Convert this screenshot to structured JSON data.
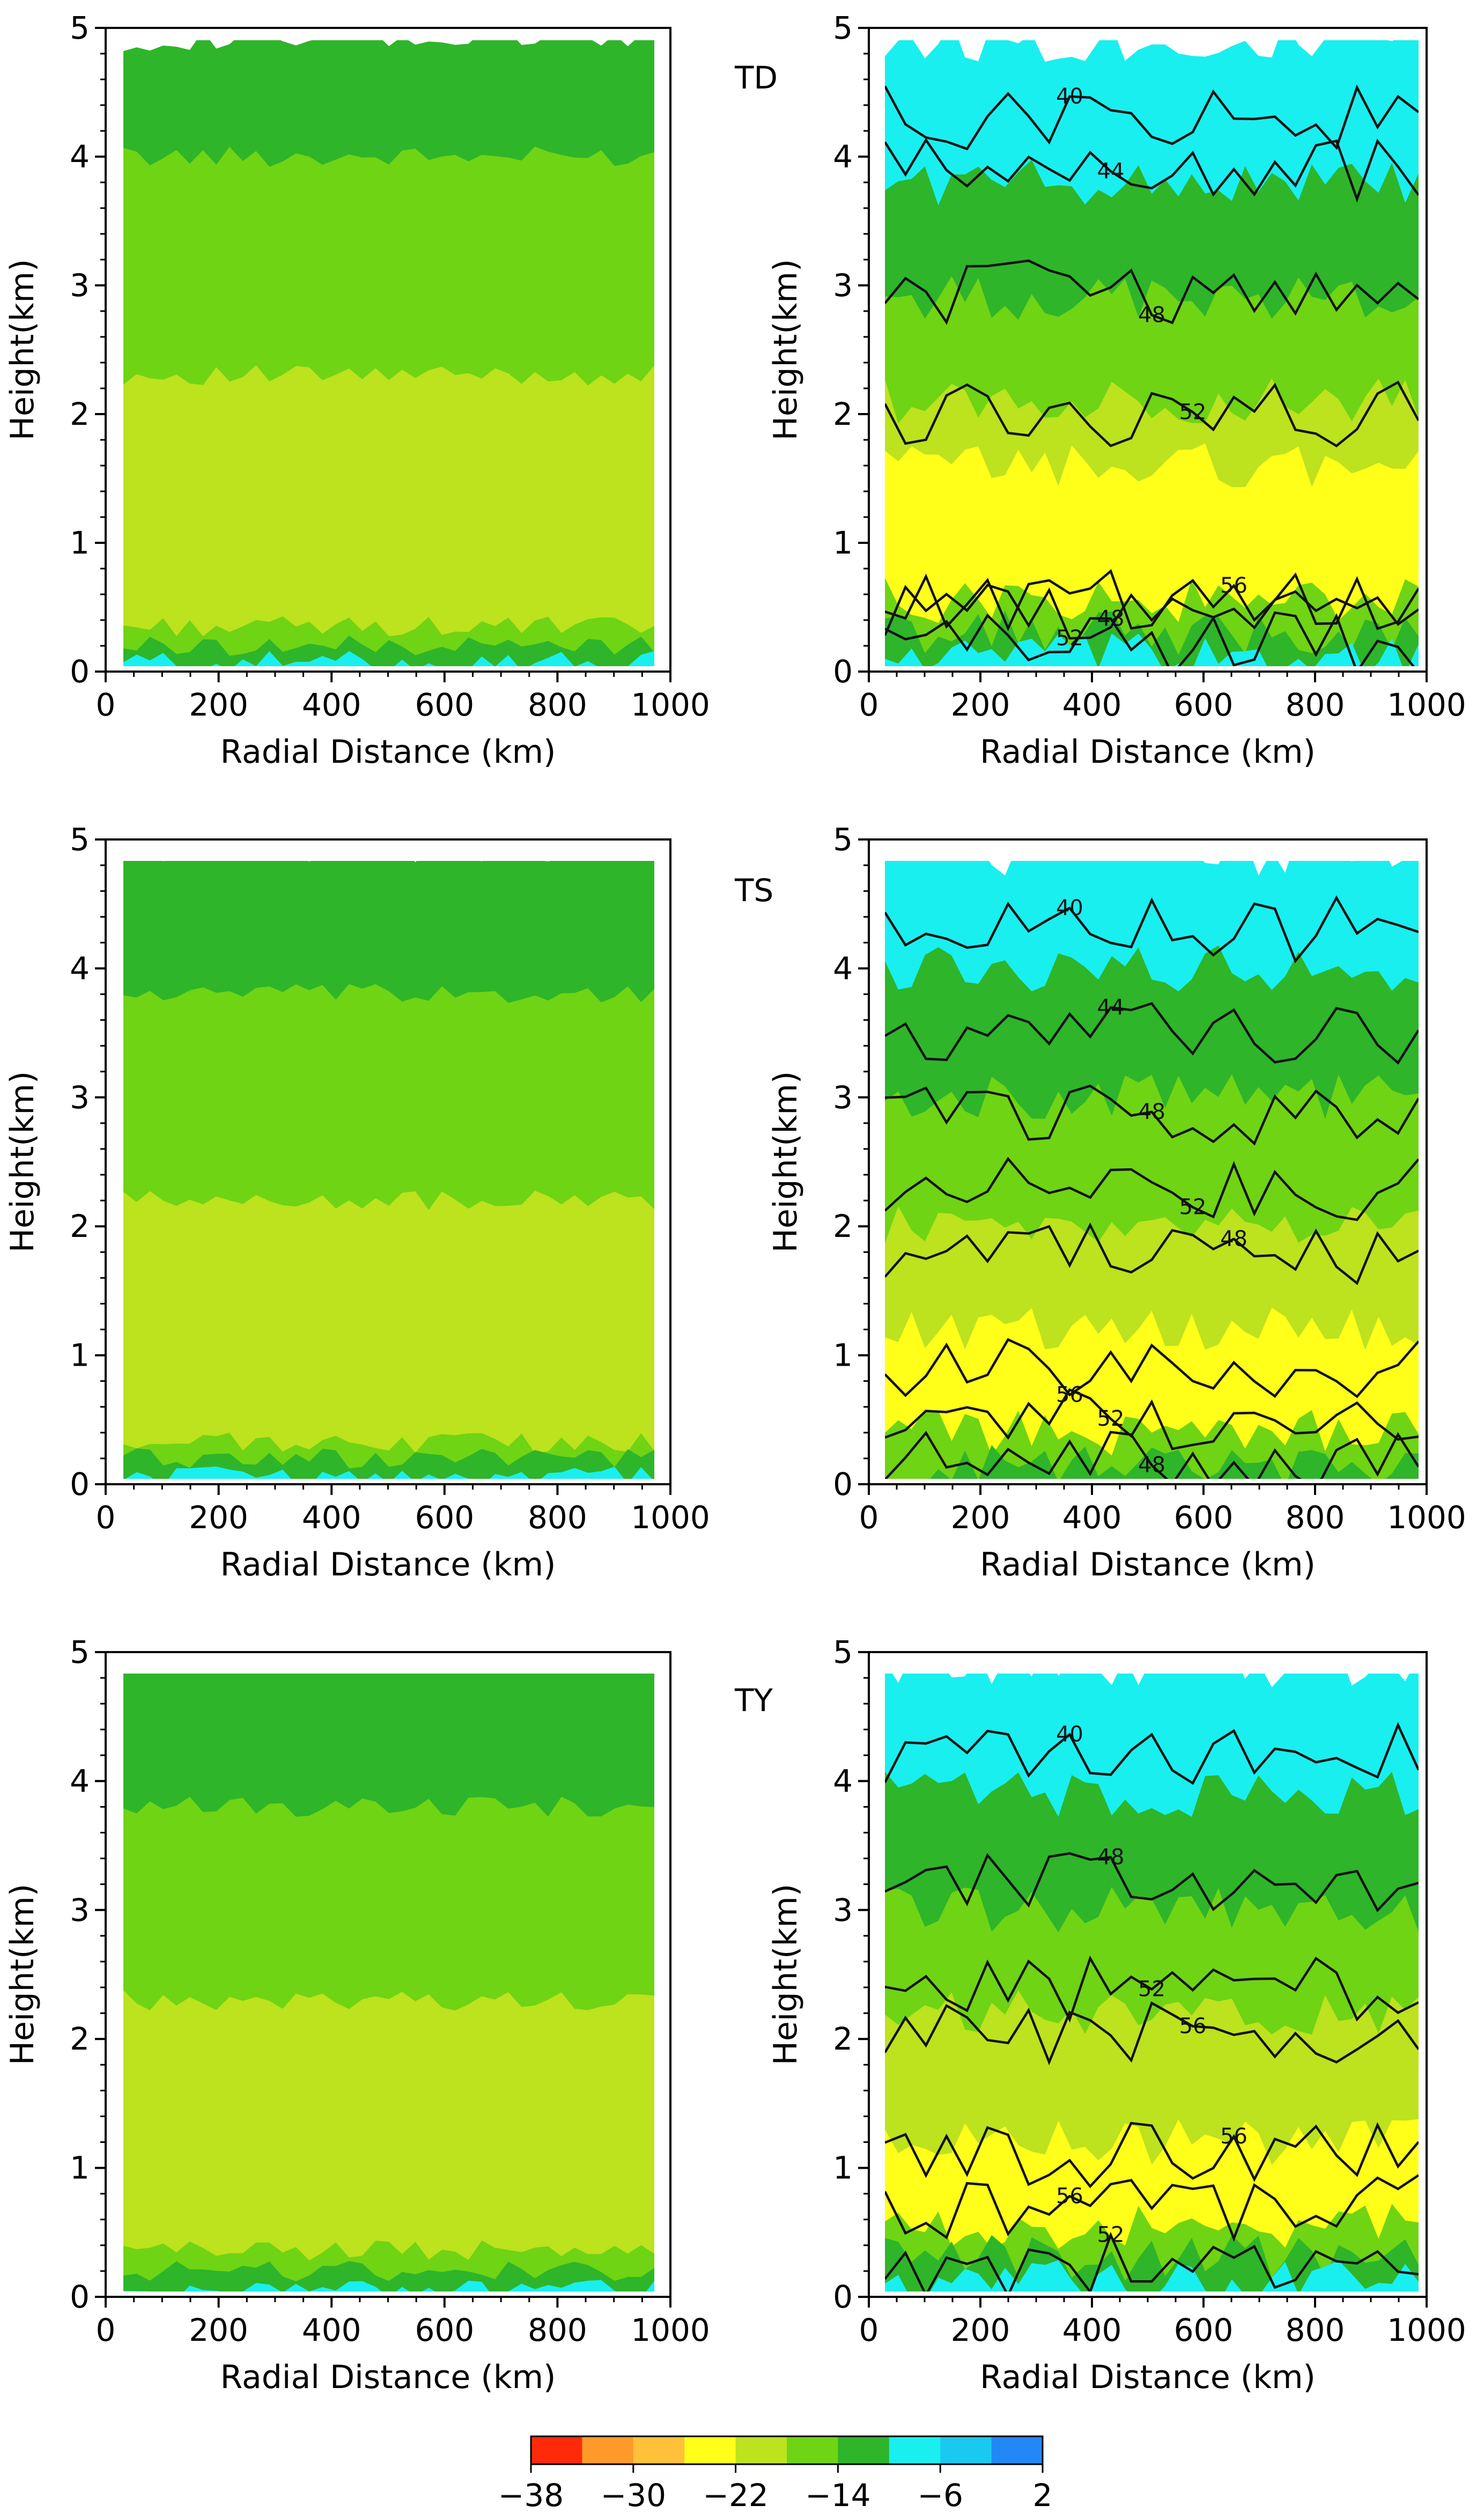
{
  "figure": {
    "type": "contour-panels",
    "layout": "3 rows x 2 columns",
    "row_tags": [
      "TD",
      "TS",
      "TY"
    ]
  },
  "chart_data": {
    "type": "heatmap",
    "x_axis": {
      "label": "Radial Distance (km)",
      "range": [
        0,
        1000
      ],
      "ticks": [
        "0",
        "200",
        "400",
        "600",
        "800",
        "1000"
      ]
    },
    "y_axis": {
      "label": "Height(km)",
      "range": [
        0,
        5
      ],
      "ticks": [
        "0",
        "1",
        "2",
        "3",
        "4",
        "5"
      ]
    },
    "colorbar": {
      "levels": [
        -38,
        -34,
        -30,
        -26,
        -22,
        -18,
        -14,
        -10,
        -6,
        -2,
        2
      ],
      "tick_labels": [
        "−38",
        "−30",
        "−22",
        "−14",
        "−6",
        "2"
      ],
      "tick_values": [
        -38,
        -30,
        -22,
        -14,
        -6,
        2
      ],
      "colors": [
        "#ff2a0a",
        "#ff9a2a",
        "#ffc13a",
        "#ffff1a",
        "#bde21e",
        "#6fd414",
        "#2eb52a",
        "#19efef",
        "#19c9f0",
        "#2288f5"
      ]
    },
    "panels": [
      {
        "row": 0,
        "col": 0,
        "tag": "",
        "filled_bands": [
          {
            "y_bottom": 0.0,
            "y_top": 0.08,
            "value": -8
          },
          {
            "y_bottom": 0.08,
            "y_top": 0.2,
            "value": -14
          },
          {
            "y_bottom": 0.2,
            "y_top": 0.35,
            "value": -18
          },
          {
            "y_bottom": 0.35,
            "y_top": 2.3,
            "value": -22
          },
          {
            "y_bottom": 2.3,
            "y_top": 4.0,
            "value": -18
          },
          {
            "y_bottom": 4.0,
            "y_top": 4.9,
            "value": -14
          }
        ],
        "contours": []
      },
      {
        "row": 0,
        "col": 1,
        "tag": "TD",
        "filled_bands": [
          {
            "y_bottom": 0.0,
            "y_top": 0.12,
            "value": -10
          },
          {
            "y_bottom": 0.12,
            "y_top": 0.3,
            "value": -14
          },
          {
            "y_bottom": 0.3,
            "y_top": 0.55,
            "value": -18
          },
          {
            "y_bottom": 0.55,
            "y_top": 1.0,
            "value": -26
          },
          {
            "y_bottom": 1.0,
            "y_top": 1.6,
            "value": -24
          },
          {
            "y_bottom": 1.6,
            "y_top": 2.1,
            "value": -22
          },
          {
            "y_bottom": 2.1,
            "y_top": 2.9,
            "value": -18
          },
          {
            "y_bottom": 2.9,
            "y_top": 3.8,
            "value": -14
          },
          {
            "y_bottom": 3.8,
            "y_top": 4.9,
            "value": -8
          }
        ],
        "contours": [
          {
            "level": 40,
            "label": "40",
            "height_km": 4.3
          },
          {
            "level": 44,
            "label": "44",
            "height_km": 3.9
          },
          {
            "level": 48,
            "label": "48",
            "height_km": 2.95
          },
          {
            "level": 52,
            "label": "52",
            "height_km": 2.0
          },
          {
            "level": 56,
            "label": "56",
            "height_km": 0.55
          },
          {
            "level": 52,
            "label": "52",
            "height_km": 0.45
          },
          {
            "level": 48,
            "label": "48",
            "height_km": 0.22
          }
        ]
      },
      {
        "row": 1,
        "col": 0,
        "tag": "",
        "filled_bands": [
          {
            "y_bottom": 0.0,
            "y_top": 0.06,
            "value": -8
          },
          {
            "y_bottom": 0.06,
            "y_top": 0.2,
            "value": -14
          },
          {
            "y_bottom": 0.2,
            "y_top": 0.32,
            "value": -18
          },
          {
            "y_bottom": 0.32,
            "y_top": 2.2,
            "value": -22
          },
          {
            "y_bottom": 2.2,
            "y_top": 3.8,
            "value": -18
          },
          {
            "y_bottom": 3.8,
            "y_top": 4.9,
            "value": -14
          }
        ],
        "contours": []
      },
      {
        "row": 1,
        "col": 1,
        "tag": "TS",
        "filled_bands": [
          {
            "y_bottom": 0.0,
            "y_top": 0.15,
            "value": -14
          },
          {
            "y_bottom": 0.15,
            "y_top": 0.4,
            "value": -18
          },
          {
            "y_bottom": 0.4,
            "y_top": 1.2,
            "value": -26
          },
          {
            "y_bottom": 1.2,
            "y_top": 2.0,
            "value": -22
          },
          {
            "y_bottom": 2.0,
            "y_top": 3.0,
            "value": -18
          },
          {
            "y_bottom": 3.0,
            "y_top": 4.0,
            "value": -14
          },
          {
            "y_bottom": 4.0,
            "y_top": 4.9,
            "value": -8
          }
        ],
        "contours": [
          {
            "level": 40,
            "label": "40",
            "height_km": 4.3
          },
          {
            "level": 44,
            "label": "44",
            "height_km": 3.5
          },
          {
            "level": 48,
            "label": "48",
            "height_km": 2.85
          },
          {
            "level": 52,
            "label": "52",
            "height_km": 2.3
          },
          {
            "level": 48,
            "label": "48",
            "height_km": 1.8
          },
          {
            "level": 56,
            "label": "56",
            "height_km": 0.9
          },
          {
            "level": 52,
            "label": "52",
            "height_km": 0.5
          },
          {
            "level": 48,
            "label": "48",
            "height_km": 0.2
          }
        ]
      },
      {
        "row": 2,
        "col": 0,
        "tag": "",
        "filled_bands": [
          {
            "y_bottom": 0.0,
            "y_top": 0.06,
            "value": -8
          },
          {
            "y_bottom": 0.06,
            "y_top": 0.2,
            "value": -14
          },
          {
            "y_bottom": 0.2,
            "y_top": 0.36,
            "value": -18
          },
          {
            "y_bottom": 0.36,
            "y_top": 2.3,
            "value": -22
          },
          {
            "y_bottom": 2.3,
            "y_top": 3.8,
            "value": -18
          },
          {
            "y_bottom": 3.8,
            "y_top": 4.9,
            "value": -14
          }
        ],
        "contours": []
      },
      {
        "row": 2,
        "col": 1,
        "tag": "TY",
        "filled_bands": [
          {
            "y_bottom": 0.0,
            "y_top": 0.12,
            "value": -10
          },
          {
            "y_bottom": 0.12,
            "y_top": 0.3,
            "value": -14
          },
          {
            "y_bottom": 0.3,
            "y_top": 0.55,
            "value": -18
          },
          {
            "y_bottom": 0.55,
            "y_top": 1.2,
            "value": -26
          },
          {
            "y_bottom": 1.2,
            "y_top": 2.2,
            "value": -22
          },
          {
            "y_bottom": 2.2,
            "y_top": 3.0,
            "value": -18
          },
          {
            "y_bottom": 3.0,
            "y_top": 3.9,
            "value": -14
          },
          {
            "y_bottom": 3.9,
            "y_top": 4.9,
            "value": -8
          }
        ],
        "contours": [
          {
            "level": 40,
            "label": "40",
            "height_km": 4.2
          },
          {
            "level": 48,
            "label": "48",
            "height_km": 3.2
          },
          {
            "level": 52,
            "label": "52",
            "height_km": 2.4
          },
          {
            "level": 56,
            "label": "56",
            "height_km": 2.05
          },
          {
            "level": 56,
            "label": "56",
            "height_km": 1.1
          },
          {
            "level": 56,
            "label": "56",
            "height_km": 0.7
          },
          {
            "level": 52,
            "label": "52",
            "height_km": 0.25
          }
        ]
      }
    ]
  }
}
